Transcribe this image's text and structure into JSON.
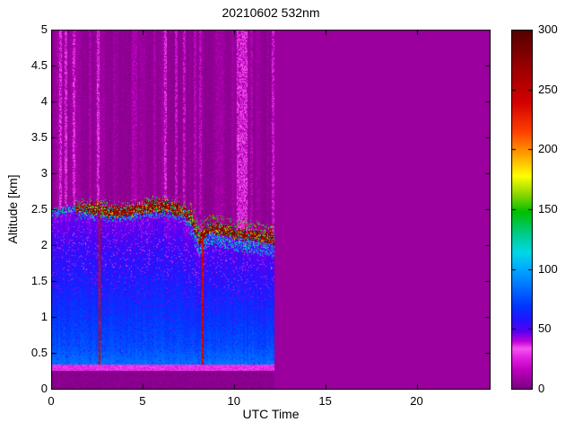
{
  "figure": {
    "background": "#ffffff",
    "date": "20210602",
    "wavelength": "532nm"
  },
  "chart_data": {
    "type": "heatmap",
    "title": "20210602 532nm",
    "xlabel": "UTC Time",
    "ylabel": "Altitude [km]",
    "xlim": [
      0,
      24
    ],
    "ylim": [
      0,
      5
    ],
    "xticks": [
      0,
      5,
      10,
      15,
      20
    ],
    "yticks": [
      0,
      0.5,
      1,
      1.5,
      2,
      2.5,
      3,
      3.5,
      4,
      4.5,
      5
    ],
    "ytick_labels": [
      "0",
      "0.5",
      "1",
      "1.5",
      "2",
      "2.5",
      "3",
      "3.5",
      "4",
      "4.5",
      "5"
    ],
    "grid": false,
    "colorbar": {
      "min": 0,
      "max": 300,
      "ticks": [
        0,
        50,
        100,
        150,
        200,
        250,
        300
      ],
      "position": "right"
    },
    "colormap_stops": [
      [
        0,
        "#7A0080"
      ],
      [
        8,
        "#9B009E"
      ],
      [
        16,
        "#BC00BE"
      ],
      [
        26,
        "#E21EE2"
      ],
      [
        34,
        "#F555F0"
      ],
      [
        40,
        "#C000DC"
      ],
      [
        48,
        "#5A00F0"
      ],
      [
        58,
        "#2414FF"
      ],
      [
        70,
        "#0038FF"
      ],
      [
        84,
        "#006CFF"
      ],
      [
        100,
        "#00A8FF"
      ],
      [
        114,
        "#00D8E8"
      ],
      [
        130,
        "#00CC88"
      ],
      [
        148,
        "#00C000"
      ],
      [
        163,
        "#90D800"
      ],
      [
        178,
        "#FFFF00"
      ],
      [
        196,
        "#FFA000"
      ],
      [
        215,
        "#FF4000"
      ],
      [
        240,
        "#D40000"
      ],
      [
        270,
        "#970000"
      ],
      [
        300,
        "#550000"
      ]
    ],
    "background_value": 8,
    "data_coverage": {
      "time_start": 0,
      "time_end": 12.2
    },
    "features": {
      "boundary_layer_top_profile": {
        "x": [
          0,
          1,
          2,
          3,
          4,
          5,
          6,
          7,
          7.6,
          8.1,
          8.6,
          9.5,
          10.5,
          11.5,
          12.2
        ],
        "y": [
          2.45,
          2.5,
          2.52,
          2.48,
          2.47,
          2.52,
          2.55,
          2.5,
          2.4,
          2.08,
          2.25,
          2.2,
          2.15,
          2.12,
          2.1
        ],
        "value_range": [
          240,
          300
        ],
        "cap_start_utc": 1.3
      },
      "aerosol_layer": {
        "alt_range": [
          0.35,
          2.5
        ],
        "value_range": [
          44,
          80
        ]
      },
      "near_surface_bright_band": {
        "alt_range": [
          0.26,
          0.34
        ],
        "value_range": [
          22,
          38
        ]
      },
      "upper_noise_region": {
        "alt_range": [
          2.6,
          5
        ],
        "value_range": [
          0,
          34
        ]
      },
      "vertical_lines_utc": [
        2.62,
        8.27
      ]
    }
  }
}
